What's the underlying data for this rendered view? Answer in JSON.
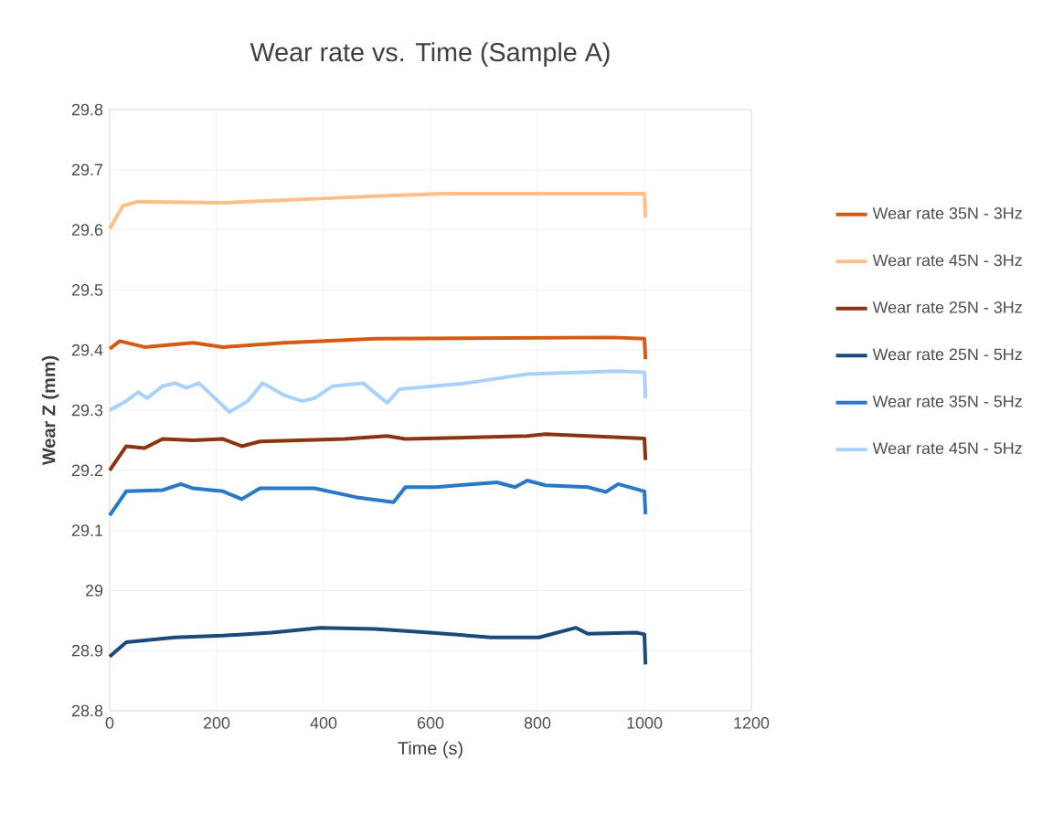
{
  "chart_data": {
    "type": "line",
    "title": "Wear rate vs. Time (Sample A)",
    "xlabel": "Time (s)",
    "ylabel": "Wear Z (mm)",
    "xlim": [
      0,
      1200
    ],
    "xticks": [
      0,
      200,
      400,
      600,
      800,
      1000,
      1200
    ],
    "ylim": [
      28.8,
      29.8
    ],
    "yticks": [
      28.8,
      28.9,
      29,
      29.1,
      29.2,
      29.3,
      29.4,
      29.5,
      29.6,
      29.7,
      29.8
    ],
    "grid": true,
    "legend": "right",
    "marker": "none",
    "line_style": "solid",
    "series": [
      {
        "name": "Wear rate 35N - 3Hz",
        "color": "#d55a12",
        "x": [
          0,
          19,
          65,
          156,
          212,
          326,
          497,
          940,
          1000,
          1002
        ],
        "values": [
          29.402,
          29.415,
          29.405,
          29.412,
          29.405,
          29.412,
          29.419,
          29.421,
          29.419,
          29.385
        ]
      },
      {
        "name": "Wear rate 45N - 3Hz",
        "color": "#ffbf86",
        "x": [
          0,
          25,
          53,
          212,
          394,
          497,
          622,
          1000,
          1002
        ],
        "values": [
          29.602,
          29.64,
          29.647,
          29.645,
          29.652,
          29.656,
          29.66,
          29.66,
          29.62
        ]
      },
      {
        "name": "Wear rate 25N - 3Hz",
        "color": "#8a3510",
        "x": [
          0,
          31,
          65,
          99,
          156,
          212,
          247,
          281,
          440,
          519,
          553,
          781,
          815,
          894,
          1000,
          1002
        ],
        "values": [
          29.2,
          29.24,
          29.237,
          29.252,
          29.25,
          29.252,
          29.24,
          29.248,
          29.252,
          29.257,
          29.252,
          29.257,
          29.26,
          29.257,
          29.253,
          29.217
        ]
      },
      {
        "name": "Wear rate 25N - 5Hz",
        "color": "#1a4a7a",
        "x": [
          0,
          31,
          122,
          212,
          303,
          394,
          497,
          599,
          713,
          803,
          872,
          894,
          985,
          1000,
          1002
        ],
        "values": [
          28.89,
          28.914,
          28.922,
          28.925,
          28.93,
          28.938,
          28.936,
          28.93,
          28.922,
          28.922,
          28.938,
          28.928,
          28.93,
          28.927,
          28.877
        ]
      },
      {
        "name": "Wear rate 35N - 5Hz",
        "color": "#2a78c8",
        "x": [
          0,
          31,
          99,
          133,
          156,
          212,
          247,
          281,
          383,
          462,
          531,
          553,
          610,
          724,
          758,
          781,
          815,
          894,
          928,
          951,
          1000,
          1002
        ],
        "values": [
          29.125,
          29.165,
          29.167,
          29.177,
          29.17,
          29.165,
          29.152,
          29.17,
          29.17,
          29.155,
          29.147,
          29.172,
          29.172,
          29.18,
          29.172,
          29.183,
          29.175,
          29.172,
          29.164,
          29.177,
          29.165,
          29.127
        ]
      },
      {
        "name": "Wear rate 45N - 5Hz",
        "color": "#a8d2fc",
        "x": [
          0,
          31,
          53,
          70,
          99,
          122,
          144,
          167,
          224,
          258,
          286,
          326,
          360,
          383,
          417,
          474,
          519,
          542,
          667,
          781,
          951,
          1000,
          1002
        ],
        "values": [
          29.3,
          29.315,
          29.33,
          29.32,
          29.34,
          29.345,
          29.337,
          29.345,
          29.297,
          29.315,
          29.345,
          29.325,
          29.315,
          29.32,
          29.34,
          29.345,
          29.312,
          29.335,
          29.345,
          29.36,
          29.365,
          29.363,
          29.32
        ]
      }
    ]
  }
}
